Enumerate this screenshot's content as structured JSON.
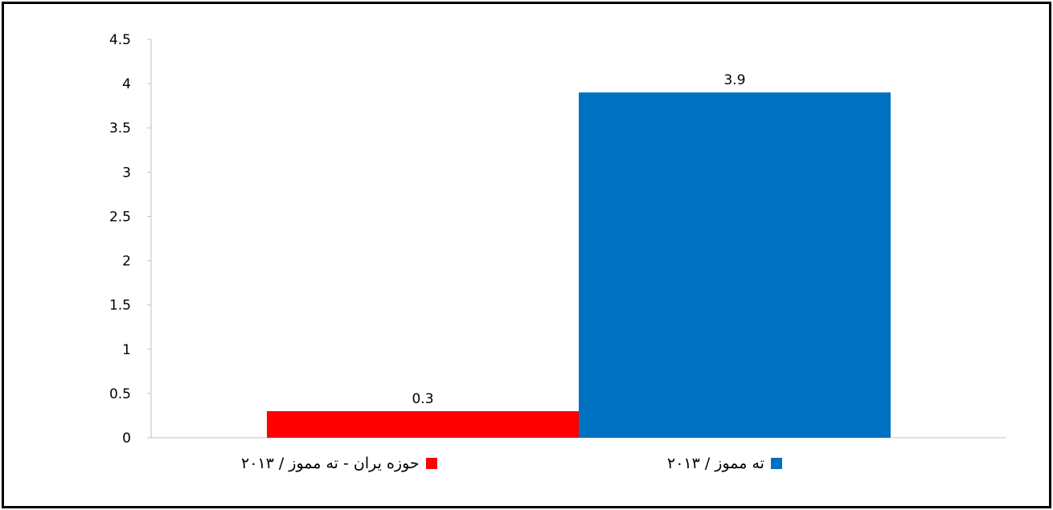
{
  "chart_data": {
    "type": "bar",
    "series": [
      {
        "name": "حوزه یران - ته مموز / ۲۰۱۳",
        "value": 0.3,
        "color": "#ff0000",
        "value_label": "0.3"
      },
      {
        "name": "ته مموز /  ۲۰۱۳",
        "value": 3.9,
        "color": "#0070c0",
        "value_label": "3.9"
      }
    ],
    "yticks": [
      "0",
      "0.5",
      "1",
      "1.5",
      "2",
      "2.5",
      "3",
      "3.5",
      "4",
      "4.5"
    ],
    "ylim": [
      0,
      4.5
    ],
    "grid": false,
    "legend_position": "bottom"
  }
}
